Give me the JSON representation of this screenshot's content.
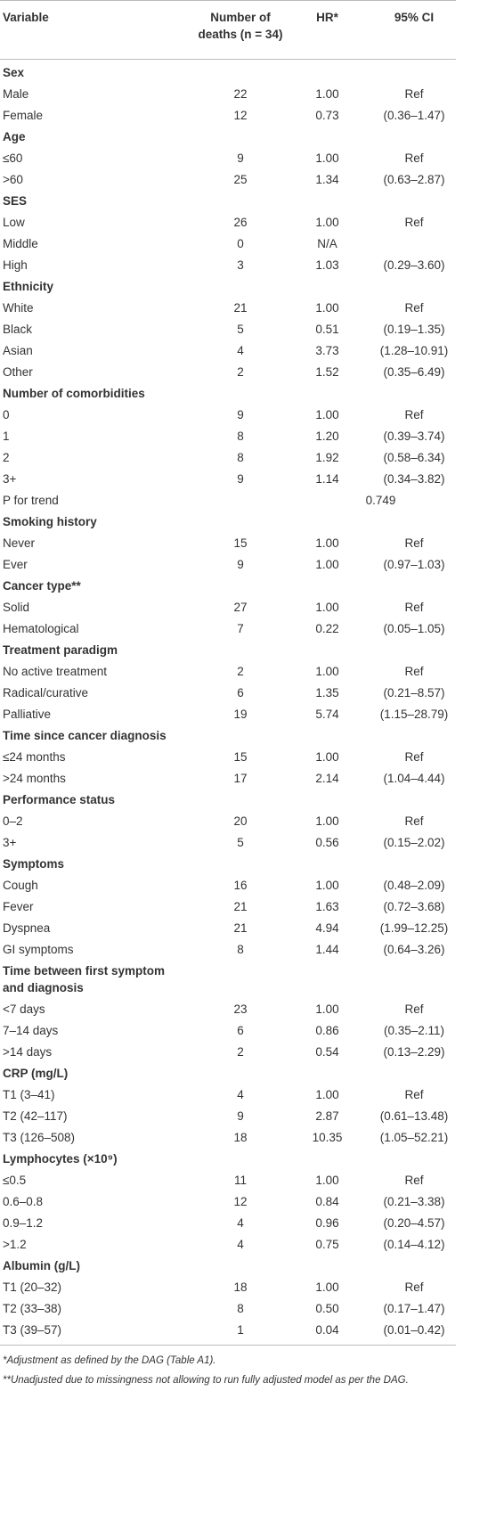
{
  "header": {
    "variable": "Variable",
    "deaths": "Number of deaths (n = 34)",
    "hr": "HR*",
    "ci": "95% CI"
  },
  "rows": [
    {
      "section": "Sex"
    },
    {
      "label": "Male",
      "deaths": 22,
      "hr": "1.00",
      "ci": "Ref"
    },
    {
      "label": "Female",
      "deaths": 12,
      "hr": "0.73",
      "ci": "(0.36–1.47)"
    },
    {
      "section": "Age"
    },
    {
      "label": "≤60",
      "deaths": 9,
      "hr": "1.00",
      "ci": "Ref"
    },
    {
      "label": ">60",
      "deaths": 25,
      "hr": "1.34",
      "ci": "(0.63–2.87)"
    },
    {
      "section": "SES"
    },
    {
      "label": "Low",
      "deaths": 26,
      "hr": "1.00",
      "ci": "Ref"
    },
    {
      "label": "Middle",
      "deaths": 0,
      "hr": "N/A"
    },
    {
      "label": "High",
      "deaths": 3,
      "hr": "1.03",
      "ci": "(0.29–3.60)"
    },
    {
      "section": "Ethnicity"
    },
    {
      "label": "White",
      "deaths": 21,
      "hr": "1.00",
      "ci": "Ref"
    },
    {
      "label": "Black",
      "deaths": 5,
      "hr": "0.51",
      "ci": "(0.19–1.35)"
    },
    {
      "label": "Asian",
      "deaths": 4,
      "hr": "3.73",
      "ci": "(1.28–10.91)"
    },
    {
      "label": "Other",
      "deaths": 2,
      "hr": "1.52",
      "ci": "(0.35–6.49)"
    },
    {
      "section": "Number of comorbidities"
    },
    {
      "label": "0",
      "deaths": 9,
      "hr": "1.00",
      "ci": "Ref"
    },
    {
      "label": "1",
      "deaths": 8,
      "hr": "1.20",
      "ci": "(0.39–3.74)"
    },
    {
      "label": "2",
      "deaths": 8,
      "hr": "1.92",
      "ci": "(0.58–6.34)"
    },
    {
      "label": "3+",
      "deaths": 9,
      "hr": "1.14",
      "ci": "(0.34–3.82)"
    },
    {
      "label": "P for trend",
      "p": "0.749"
    },
    {
      "section": "Smoking history"
    },
    {
      "label": "Never",
      "deaths": 15,
      "hr": "1.00",
      "ci": "Ref"
    },
    {
      "label": "Ever",
      "deaths": 9,
      "hr": "1.00",
      "ci": "(0.97–1.03)"
    },
    {
      "section": "Cancer type**"
    },
    {
      "label": "Solid",
      "deaths": 27,
      "hr": "1.00",
      "ci": "Ref"
    },
    {
      "label": "Hematological",
      "deaths": 7,
      "hr": "0.22",
      "ci": "(0.05–1.05)"
    },
    {
      "section": "Treatment paradigm"
    },
    {
      "label": "No active treatment",
      "deaths": 2,
      "hr": "1.00",
      "ci": "Ref"
    },
    {
      "label": "Radical/curative",
      "deaths": 6,
      "hr": "1.35",
      "ci": "(0.21–8.57)"
    },
    {
      "label": "Palliative",
      "deaths": 19,
      "hr": "5.74",
      "ci": "(1.15–28.79)"
    },
    {
      "section": "Time since cancer diagnosis"
    },
    {
      "label": "≤24 months",
      "deaths": 15,
      "hr": "1.00",
      "ci": "Ref"
    },
    {
      "label": ">24 months",
      "deaths": 17,
      "hr": "2.14",
      "ci": "(1.04–4.44)"
    },
    {
      "section": "Performance status"
    },
    {
      "label": "0–2",
      "deaths": 20,
      "hr": "1.00",
      "ci": "Ref"
    },
    {
      "label": "3+",
      "deaths": 5,
      "hr": "0.56",
      "ci": "(0.15–2.02)"
    },
    {
      "section": "Symptoms"
    },
    {
      "label": "Cough",
      "deaths": 16,
      "hr": "1.00",
      "ci": "(0.48–2.09)"
    },
    {
      "label": "Fever",
      "deaths": 21,
      "hr": "1.63",
      "ci": "(0.72–3.68)"
    },
    {
      "label": "Dyspnea",
      "deaths": 21,
      "hr": "4.94",
      "ci": "(1.99–12.25)"
    },
    {
      "label": "GI symptoms",
      "deaths": 8,
      "hr": "1.44",
      "ci": "(0.64–3.26)"
    },
    {
      "section": "Time between first symptom and diagnosis"
    },
    {
      "label": "<7 days",
      "deaths": 23,
      "hr": "1.00",
      "ci": "Ref"
    },
    {
      "label": "7–14 days",
      "deaths": 6,
      "hr": "0.86",
      "ci": "(0.35–2.11)"
    },
    {
      "label": ">14 days",
      "deaths": 2,
      "hr": "0.54",
      "ci": "(0.13–2.29)"
    },
    {
      "section": "CRP (mg/L)"
    },
    {
      "label": "T1 (3–41)",
      "deaths": 4,
      "hr": "1.00",
      "ci": "Ref"
    },
    {
      "label": "T2 (42–117)",
      "deaths": 9,
      "hr": "2.87",
      "ci": "(0.61–13.48)"
    },
    {
      "label": "T3 (126–508)",
      "deaths": 18,
      "hr": "10.35",
      "ci": "(1.05–52.21)"
    },
    {
      "section": "Lymphocytes (×10⁹)"
    },
    {
      "label": "≤0.5",
      "deaths": 11,
      "hr": "1.00",
      "ci": "Ref"
    },
    {
      "label": "0.6–0.8",
      "deaths": 12,
      "hr": "0.84",
      "ci": "(0.21–3.38)"
    },
    {
      "label": "0.9–1.2",
      "deaths": 4,
      "hr": "0.96",
      "ci": "(0.20–4.57)"
    },
    {
      "label": ">1.2",
      "deaths": 4,
      "hr": "0.75",
      "ci": "(0.14–4.12)"
    },
    {
      "section": "Albumin (g/L)"
    },
    {
      "label": "T1 (20–32)",
      "deaths": 18,
      "hr": "1.00",
      "ci": "Ref"
    },
    {
      "label": "T2 (33–38)",
      "deaths": 8,
      "hr": "0.50",
      "ci": "(0.17–1.47)"
    },
    {
      "label": "T3 (39–57)",
      "deaths": 1,
      "hr": "0.04",
      "ci": "(0.01–0.42)"
    }
  ],
  "footnotes": [
    "*Adjustment as defined by the DAG (Table A1).",
    "**Unadjusted due to missingness not allowing to run fully adjusted model as per the DAG."
  ]
}
